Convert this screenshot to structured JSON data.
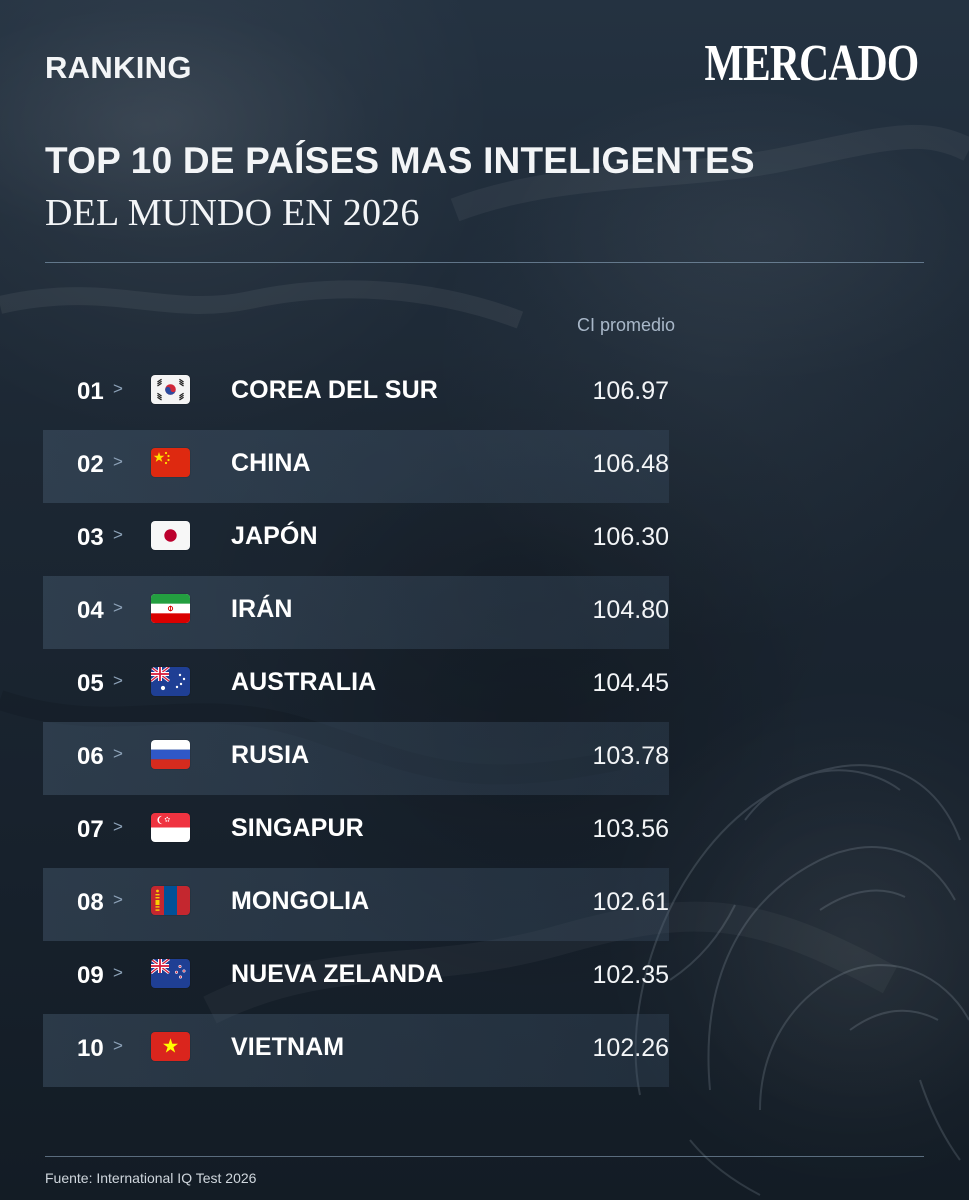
{
  "header": {
    "kicker": "RANKING",
    "logo": "MERCADO"
  },
  "title": {
    "line1": "TOP 10 DE PAÍSES MAS INTELIGENTES",
    "line2": "DEL MUNDO EN 2026"
  },
  "table": {
    "value_header": "CI promedio",
    "rows": [
      {
        "rank": "01",
        "chevron": ">",
        "country": "COREA DEL SUR",
        "value": "106.97",
        "flag_icon": "south-korea-flag-icon"
      },
      {
        "rank": "02",
        "chevron": ">",
        "country": "CHINA",
        "value": "106.48",
        "flag_icon": "china-flag-icon"
      },
      {
        "rank": "03",
        "chevron": ">",
        "country": "JAPÓN",
        "value": "106.30",
        "flag_icon": "japan-flag-icon"
      },
      {
        "rank": "04",
        "chevron": ">",
        "country": "IRÁN",
        "value": "104.80",
        "flag_icon": "iran-flag-icon"
      },
      {
        "rank": "05",
        "chevron": ">",
        "country": "AUSTRALIA",
        "value": "104.45",
        "flag_icon": "australia-flag-icon"
      },
      {
        "rank": "06",
        "chevron": ">",
        "country": "RUSIA",
        "value": "103.78",
        "flag_icon": "russia-flag-icon"
      },
      {
        "rank": "07",
        "chevron": ">",
        "country": "SINGAPUR",
        "value": "103.56",
        "flag_icon": "singapore-flag-icon"
      },
      {
        "rank": "08",
        "chevron": ">",
        "country": "MONGOLIA",
        "value": "102.61",
        "flag_icon": "mongolia-flag-icon"
      },
      {
        "rank": "09",
        "chevron": ">",
        "country": "NUEVA ZELANDA",
        "value": "102.35",
        "flag_icon": "new-zealand-flag-icon"
      },
      {
        "rank": "10",
        "chevron": ">",
        "country": "VIETNAM",
        "value": "102.26",
        "flag_icon": "vietnam-flag-icon"
      }
    ]
  },
  "footer": {
    "source": "Fuente: International IQ Test 2026"
  }
}
